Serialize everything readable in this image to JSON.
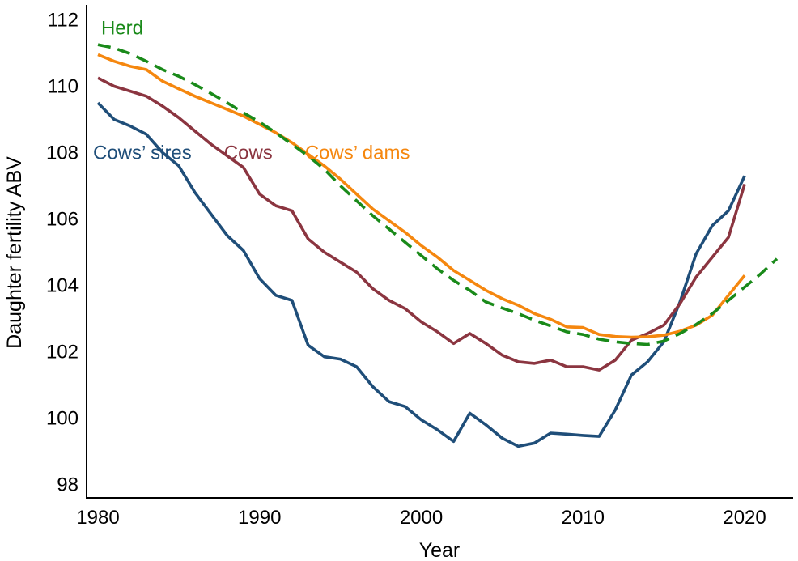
{
  "chart_data": {
    "type": "line",
    "title": "",
    "xlabel": "Year",
    "ylabel": "Daughter fertility ABV",
    "xlim": [
      1979.3,
      2023.0
    ],
    "ylim": [
      97.6,
      112.45
    ],
    "xticks": [
      1980,
      1990,
      2000,
      2010,
      2020
    ],
    "yticks": [
      98,
      100,
      102,
      104,
      106,
      108,
      110,
      112
    ],
    "grid": false,
    "legend": "inline labels",
    "series": [
      {
        "name": "Cows’ sires",
        "color": "#1f4e79",
        "dash": "solid",
        "x": [
          1980,
          1981,
          1982,
          1983,
          1984,
          1985,
          1986,
          1987,
          1988,
          1989,
          1990,
          1991,
          1992,
          1993,
          1994,
          1995,
          1996,
          1997,
          1998,
          1999,
          2000,
          2001,
          2002,
          2003,
          2004,
          2005,
          2006,
          2007,
          2008,
          2009,
          2010,
          2011,
          2012,
          2013,
          2014,
          2015,
          2016,
          2017,
          2018,
          2019,
          2020
        ],
        "y": [
          109.5,
          109.0,
          108.8,
          108.55,
          108.0,
          107.6,
          106.8,
          106.15,
          105.5,
          105.05,
          104.2,
          103.7,
          103.55,
          102.2,
          101.85,
          101.78,
          101.55,
          100.95,
          100.5,
          100.35,
          99.95,
          99.65,
          99.3,
          100.15,
          99.8,
          99.4,
          99.15,
          99.25,
          99.55,
          99.52,
          99.48,
          99.45,
          100.25,
          101.3,
          101.7,
          102.3,
          103.5,
          104.95,
          105.8,
          106.25,
          107.3
        ]
      },
      {
        "name": "Cows",
        "color": "#8b3540",
        "dash": "solid",
        "x": [
          1980,
          1981,
          1982,
          1983,
          1984,
          1985,
          1986,
          1987,
          1988,
          1989,
          1990,
          1991,
          1992,
          1993,
          1994,
          1995,
          1996,
          1997,
          1998,
          1999,
          2000,
          2001,
          2002,
          2003,
          2004,
          2005,
          2006,
          2007,
          2008,
          2009,
          2010,
          2011,
          2012,
          2013,
          2014,
          2015,
          2016,
          2017,
          2018,
          2019,
          2020
        ],
        "y": [
          110.25,
          110.0,
          109.85,
          109.7,
          109.4,
          109.05,
          108.65,
          108.25,
          107.9,
          107.55,
          106.75,
          106.4,
          106.25,
          105.4,
          105.0,
          104.7,
          104.4,
          103.9,
          103.55,
          103.3,
          102.9,
          102.6,
          102.25,
          102.55,
          102.25,
          101.9,
          101.7,
          101.65,
          101.75,
          101.55,
          101.55,
          101.45,
          101.75,
          102.35,
          102.55,
          102.8,
          103.45,
          104.25,
          104.85,
          105.45,
          107.05
        ]
      },
      {
        "name": "Cows’ dams",
        "color": "#f5870f",
        "dash": "solid",
        "x": [
          1980,
          1981,
          1982,
          1983,
          1984,
          1985,
          1986,
          1987,
          1988,
          1989,
          1990,
          1991,
          1992,
          1993,
          1994,
          1995,
          1996,
          1997,
          1998,
          1999,
          2000,
          2001,
          2002,
          2003,
          2004,
          2005,
          2006,
          2007,
          2008,
          2009,
          2010,
          2011,
          2012,
          2013,
          2014,
          2015,
          2016,
          2017,
          2018,
          2019,
          2020
        ],
        "y": [
          110.95,
          110.75,
          110.6,
          110.5,
          110.15,
          109.92,
          109.7,
          109.5,
          109.3,
          109.1,
          108.85,
          108.6,
          108.3,
          107.95,
          107.6,
          107.2,
          106.75,
          106.3,
          105.95,
          105.6,
          105.2,
          104.85,
          104.45,
          104.15,
          103.85,
          103.6,
          103.4,
          103.15,
          102.98,
          102.75,
          102.73,
          102.52,
          102.46,
          102.44,
          102.45,
          102.5,
          102.62,
          102.8,
          103.1,
          103.7,
          104.3
        ]
      },
      {
        "name": "Herd",
        "color": "#1a8a1a",
        "dash": "dashed",
        "x": [
          1980,
          1981,
          1982,
          1983,
          1984,
          1985,
          1986,
          1987,
          1988,
          1989,
          1990,
          1991,
          1992,
          1993,
          1994,
          1995,
          1996,
          1997,
          1998,
          1999,
          2000,
          2001,
          2002,
          2003,
          2004,
          2005,
          2006,
          2007,
          2008,
          2009,
          2010,
          2011,
          2012,
          2013,
          2014,
          2015,
          2016,
          2017,
          2018,
          2019,
          2020,
          2021,
          2022
        ],
        "y": [
          111.25,
          111.15,
          110.98,
          110.75,
          110.5,
          110.3,
          110.05,
          109.78,
          109.5,
          109.2,
          108.92,
          108.6,
          108.25,
          107.9,
          107.5,
          107.0,
          106.55,
          106.1,
          105.7,
          105.3,
          104.9,
          104.5,
          104.15,
          103.85,
          103.5,
          103.32,
          103.15,
          102.95,
          102.78,
          102.6,
          102.52,
          102.38,
          102.3,
          102.25,
          102.22,
          102.32,
          102.55,
          102.82,
          103.15,
          103.55,
          103.95,
          104.35,
          104.8
        ]
      }
    ],
    "annotations": [
      {
        "text": "Herd",
        "series": "Herd",
        "color": "#1a8a1a",
        "x": 1980.2,
        "y": 111.75
      },
      {
        "text": "Cows’ sires",
        "series": "Cows’ sires",
        "color": "#1f4e79",
        "x": 1979.7,
        "y": 108.0
      },
      {
        "text": "Cows",
        "series": "Cows",
        "color": "#8b3540",
        "x": 1987.8,
        "y": 108.0
      },
      {
        "text": "Cows’ dams",
        "series": "Cows’ dams",
        "color": "#f5870f",
        "x": 1992.8,
        "y": 108.0
      }
    ]
  }
}
